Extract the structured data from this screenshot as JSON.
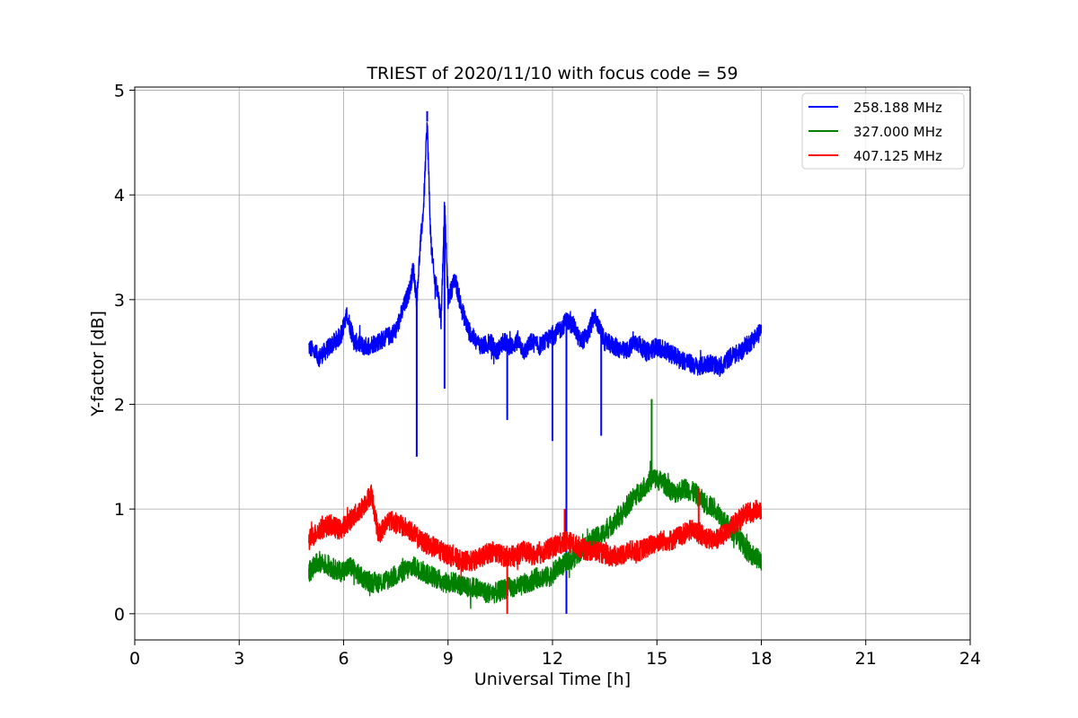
{
  "chart_data": {
    "type": "line",
    "title": "TRIEST of 2020/11/10 with focus code = 59",
    "xlabel": "Universal Time [h]",
    "ylabel": "Y-factor [dB]",
    "xlim": [
      0,
      24
    ],
    "ylim": [
      -0.25,
      5.03
    ],
    "xticks": [
      0,
      3,
      6,
      9,
      12,
      15,
      18,
      21,
      24
    ],
    "xtick_labels": [
      "0",
      "3",
      "6",
      "9",
      "12",
      "15",
      "18",
      "21",
      "24"
    ],
    "yticks": [
      0,
      1,
      2,
      3,
      4,
      5
    ],
    "ytick_labels": [
      "0",
      "1",
      "2",
      "3",
      "4",
      "5"
    ],
    "grid": true,
    "legend_position": "top-right",
    "series": [
      {
        "name": "258.188 MHz",
        "color": "#0000ff",
        "x": [
          5.0,
          5.3,
          5.6,
          5.9,
          6.1,
          6.3,
          6.6,
          7.0,
          7.3,
          7.5,
          7.7,
          7.9,
          8.0,
          8.1,
          8.2,
          8.3,
          8.4,
          8.5,
          8.6,
          8.7,
          8.8,
          8.9,
          9.0,
          9.1,
          9.2,
          9.4,
          9.6,
          9.8,
          10.0,
          10.2,
          10.4,
          10.6,
          10.8,
          11.0,
          11.2,
          11.4,
          11.6,
          11.8,
          12.0,
          12.2,
          12.4,
          12.6,
          12.8,
          13.0,
          13.2,
          13.5,
          13.8,
          14.1,
          14.4,
          14.7,
          15.0,
          15.3,
          15.6,
          15.9,
          16.2,
          16.5,
          16.8,
          17.1,
          17.4,
          17.7,
          18.0
        ],
        "y": [
          2.55,
          2.45,
          2.55,
          2.65,
          2.85,
          2.6,
          2.55,
          2.6,
          2.65,
          2.7,
          2.9,
          3.1,
          3.3,
          3.0,
          3.5,
          3.9,
          4.7,
          3.6,
          3.2,
          3.1,
          2.8,
          3.9,
          3.0,
          3.1,
          3.2,
          2.9,
          2.7,
          2.6,
          2.55,
          2.6,
          2.5,
          2.6,
          2.55,
          2.6,
          2.5,
          2.6,
          2.55,
          2.6,
          2.65,
          2.7,
          2.8,
          2.75,
          2.6,
          2.65,
          2.85,
          2.6,
          2.55,
          2.5,
          2.6,
          2.5,
          2.55,
          2.5,
          2.45,
          2.4,
          2.35,
          2.4,
          2.35,
          2.45,
          2.5,
          2.6,
          2.7
        ],
        "spikes": [
          {
            "x": 8.1,
            "y": 1.5
          },
          {
            "x": 8.4,
            "y": 4.8
          },
          {
            "x": 8.9,
            "y": 2.15
          },
          {
            "x": 10.7,
            "y": 1.85
          },
          {
            "x": 12.0,
            "y": 1.65
          },
          {
            "x": 12.4,
            "y": 0.0
          },
          {
            "x": 13.4,
            "y": 1.7
          }
        ]
      },
      {
        "name": "327.000 MHz",
        "color": "#008000",
        "x": [
          5.0,
          5.3,
          5.6,
          5.9,
          6.2,
          6.5,
          6.8,
          7.1,
          7.4,
          7.7,
          8.0,
          8.3,
          8.6,
          8.9,
          9.2,
          9.5,
          9.8,
          10.1,
          10.4,
          10.7,
          11.0,
          11.3,
          11.6,
          11.9,
          12.2,
          12.5,
          12.8,
          13.1,
          13.4,
          13.7,
          14.0,
          14.3,
          14.6,
          14.9,
          15.2,
          15.5,
          15.8,
          16.1,
          16.4,
          16.7,
          17.0,
          17.3,
          17.6,
          18.0
        ],
        "y": [
          0.4,
          0.5,
          0.45,
          0.4,
          0.45,
          0.35,
          0.3,
          0.3,
          0.35,
          0.4,
          0.45,
          0.4,
          0.35,
          0.3,
          0.3,
          0.25,
          0.25,
          0.2,
          0.2,
          0.25,
          0.25,
          0.3,
          0.35,
          0.35,
          0.45,
          0.5,
          0.6,
          0.7,
          0.75,
          0.85,
          0.95,
          1.1,
          1.2,
          1.3,
          1.25,
          1.15,
          1.2,
          1.15,
          1.05,
          1.0,
          0.85,
          0.75,
          0.6,
          0.5
        ],
        "spikes": [
          {
            "x": 14.85,
            "y": 2.05
          }
        ]
      },
      {
        "name": "407.125 MHz",
        "color": "#ff0000",
        "x": [
          5.0,
          5.3,
          5.6,
          5.9,
          6.2,
          6.5,
          6.8,
          7.0,
          7.3,
          7.6,
          7.9,
          8.2,
          8.5,
          8.8,
          9.1,
          9.4,
          9.7,
          10.0,
          10.3,
          10.6,
          10.9,
          11.2,
          11.5,
          11.8,
          12.1,
          12.4,
          12.7,
          13.0,
          13.3,
          13.6,
          13.9,
          14.2,
          14.5,
          14.8,
          15.1,
          15.4,
          15.7,
          16.0,
          16.3,
          16.6,
          16.9,
          17.2,
          17.5,
          18.0
        ],
        "y": [
          0.7,
          0.8,
          0.85,
          0.8,
          0.9,
          1.0,
          1.15,
          0.75,
          0.9,
          0.85,
          0.8,
          0.7,
          0.65,
          0.6,
          0.55,
          0.5,
          0.5,
          0.55,
          0.6,
          0.55,
          0.55,
          0.6,
          0.55,
          0.6,
          0.65,
          0.7,
          0.65,
          0.6,
          0.6,
          0.55,
          0.55,
          0.6,
          0.6,
          0.65,
          0.7,
          0.7,
          0.75,
          0.8,
          0.75,
          0.7,
          0.75,
          0.85,
          0.95,
          1.0
        ],
        "spikes": [
          {
            "x": 10.7,
            "y": 0.0
          },
          {
            "x": 12.35,
            "y": 1.0
          },
          {
            "x": 16.2,
            "y": 1.2
          }
        ]
      }
    ]
  }
}
